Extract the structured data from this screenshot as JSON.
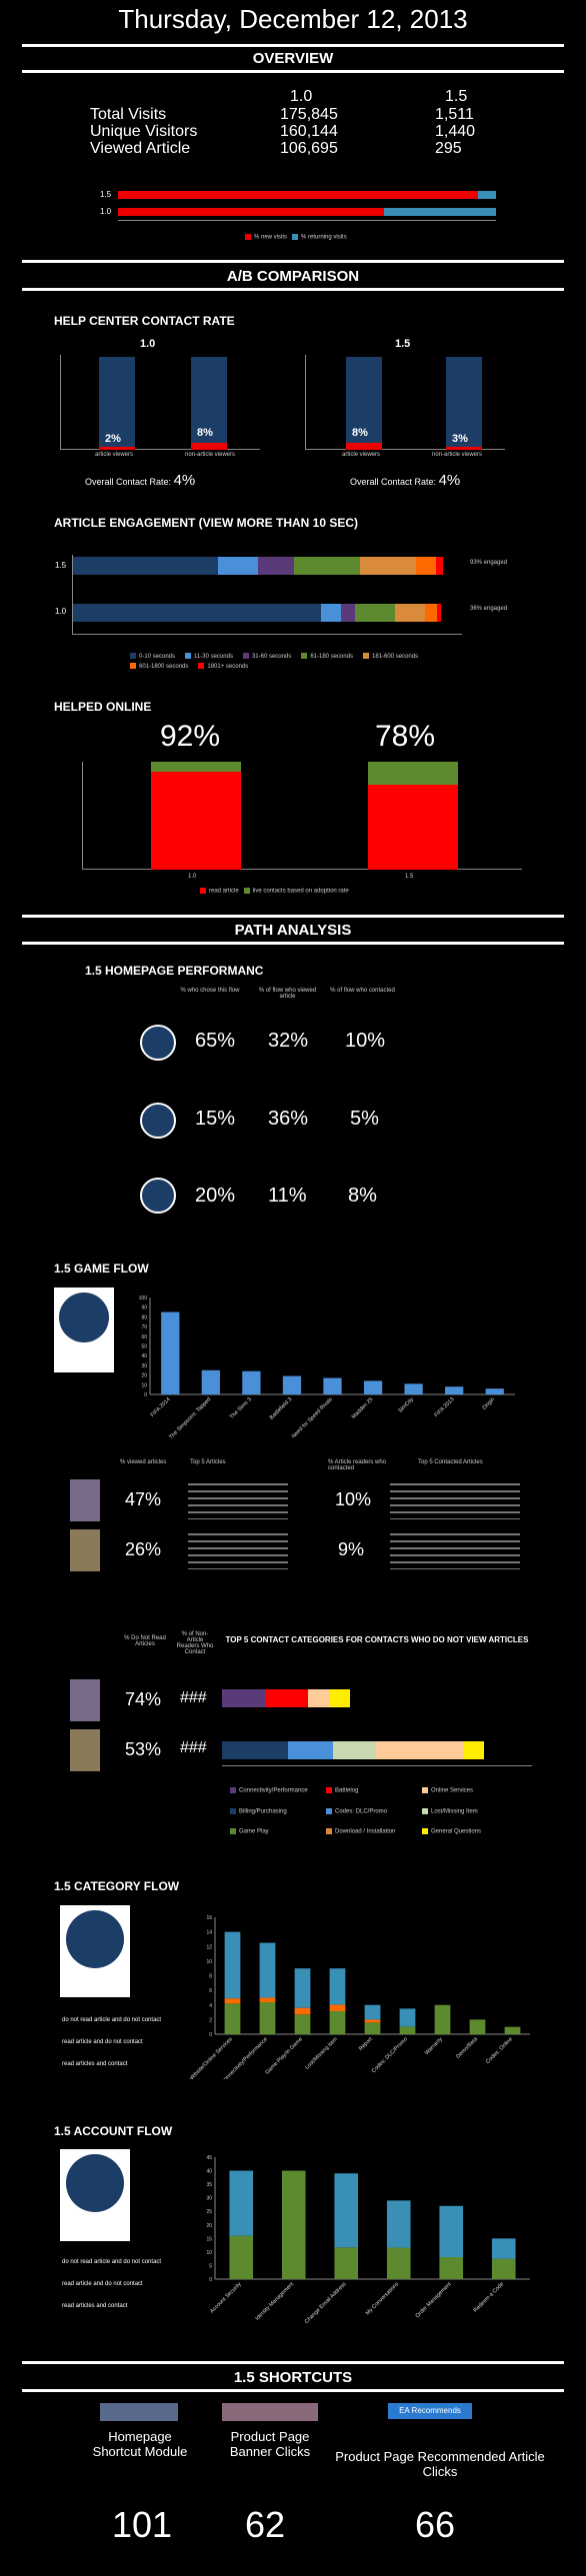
{
  "title": "Thursday, December 12, 2013",
  "overview": {
    "heading": "OVERVIEW",
    "col_a": "1.0",
    "col_b": "1.5",
    "rows": [
      {
        "label": "Total Visits",
        "a": "175,845",
        "b": "1,511"
      },
      {
        "label": "Unique Visitors",
        "a": "160,144",
        "b": "1,440"
      },
      {
        "label": "Viewed Article",
        "a": "106,695",
        "b": "295"
      }
    ],
    "legend_new": "% new visits",
    "legend_ret": "% returning visits"
  },
  "ab": {
    "heading": "A/B COMPARISON",
    "contact_title": "HELP CENTER CONTACT RATE",
    "left": {
      "version": "1.0",
      "overall_label": "Overall Contact Rate:",
      "overall": "4%"
    },
    "right": {
      "version": "1.5",
      "overall_label": "Overall Contact Rate:",
      "overall": "4%"
    },
    "engage_title": "ARTICLE ENGAGEMENT (VIEW MORE THAN 10 SEC)",
    "engage_legend": [
      "0-10 seconds",
      "11-30 seconds",
      "31-60 seconds",
      "61-180 seconds",
      "181-600 seconds",
      "601-1800 seconds",
      "1801+ seconds"
    ],
    "helped_title": "HELPED ONLINE",
    "helped": [
      "92%",
      "78%"
    ],
    "helped_legend": [
      "read article",
      "live contacts based on adoption rate"
    ]
  },
  "path": {
    "heading": "PATH ANALYSIS",
    "hp_title": "1.5 HOMEPAGE PERFORMANC",
    "cols": [
      "% who chose this flow",
      "% of flow who viewed article",
      "% of flow who contacted"
    ],
    "rows": [
      [
        "65%",
        "32%",
        "10%"
      ],
      [
        "15%",
        "36%",
        "5%"
      ],
      [
        "20%",
        "11%",
        "8%"
      ]
    ],
    "game_title": "1.5 GAME FLOW",
    "top5_head": [
      "% viewed articles",
      "Top 5 Articles",
      "% Article readers who contacted",
      "Top 5 Contacted Articles"
    ],
    "top5_rows": [
      [
        "47%",
        "10%"
      ],
      [
        "26%",
        "9%"
      ]
    ],
    "nonread_head": [
      "% Do Not Read Articles",
      "% of Non-Article Readers Who Contact"
    ],
    "nonread_title": "TOP 5 CONTACT CATEGORIES FOR CONTACTS WHO DO NOT VIEW ARTICLES",
    "nonread_rows": [
      [
        "74%",
        "###"
      ],
      [
        "53%",
        "###"
      ]
    ],
    "nonread_legend": [
      "Connectivity/Performance",
      "Battlelog",
      "Online Services",
      "Billing/Purchasing",
      "Codes: DLC/Promo",
      "Lost/Missing Item",
      "Game Play",
      "Download / Installation",
      "General Questions"
    ],
    "cat_title": "1.5 CATEGORY FLOW",
    "flow_legend": [
      "do not read article and do not contact",
      "read article and do not contact",
      "read articles and contact"
    ],
    "acct_title": "1.5 ACCOUNT FLOW"
  },
  "shortcuts": {
    "heading": "1.5 SHORTCUTS",
    "labels": [
      "Homepage Shortcut Module",
      "Product Page Banner Clicks",
      "Product Page Recommended Article Clicks"
    ],
    "values": [
      "101",
      "62",
      "66"
    ],
    "badge": "EA Recommends"
  },
  "colors": {
    "navy": "#1c3d66",
    "blue": "#4a90d9",
    "red": "#ff0000",
    "green": "#5e8a2f",
    "teal": "#3a8fb7",
    "olive": "#6b8e23"
  },
  "chart_data": [
    {
      "type": "bar",
      "title": "",
      "categories": [
        "1.5",
        "1.0"
      ],
      "series": [
        {
          "name": "% new visits",
          "values": [
            95,
            70
          ]
        },
        {
          "name": "% returning visits",
          "values": [
            5,
            30
          ]
        }
      ]
    },
    {
      "type": "bar",
      "title": "HELP CENTER CONTACT RATE 1.0",
      "categories": [
        "article viewers",
        "non-article viewers"
      ],
      "values": [
        2,
        8
      ]
    },
    {
      "type": "bar",
      "title": "HELP CENTER CONTACT RATE 1.5",
      "categories": [
        "article viewers",
        "non-article viewers"
      ],
      "values": [
        8,
        3
      ]
    },
    {
      "type": "bar",
      "title": "ARTICLE ENGAGEMENT (VIEW MORE THAN 10 SEC)",
      "categories": [
        "1.5",
        "1.0"
      ],
      "series_labels": [
        "93% engaged",
        "36% engaged"
      ]
    },
    {
      "type": "bar",
      "title": "1.5 GAME FLOW",
      "categories": [
        "FIFA 2014",
        "The Simpsons: Tapped",
        "The Sims 3",
        "Battlefield 3",
        "Need for Speed Rivals",
        "Madden 25",
        "SimCity",
        "FIFA 2013",
        "Origin"
      ],
      "values": [
        85,
        25,
        24,
        19,
        17,
        14,
        11,
        8,
        6
      ]
    },
    {
      "type": "bar",
      "title": "1.5 CATEGORY FLOW",
      "categories": [
        "Website/Online Services",
        "Connectivity/Performance",
        "Game Play/In Game",
        "Lost/Missing Item",
        "Report",
        "Codes: DLC/Promo",
        "Warranty",
        "Demo/Beta",
        "Codes: Online"
      ],
      "values": [
        14,
        12.5,
        9,
        9,
        4,
        3.5,
        4,
        2,
        1
      ]
    },
    {
      "type": "bar",
      "title": "1.5 ACCOUNT FLOW",
      "categories": [
        "Account Security",
        "Identity Management",
        "Change Email Address",
        "My Conversations",
        "Order Management",
        "Redeem a Code"
      ],
      "values": [
        40,
        40,
        39,
        29,
        27,
        15
      ]
    }
  ]
}
